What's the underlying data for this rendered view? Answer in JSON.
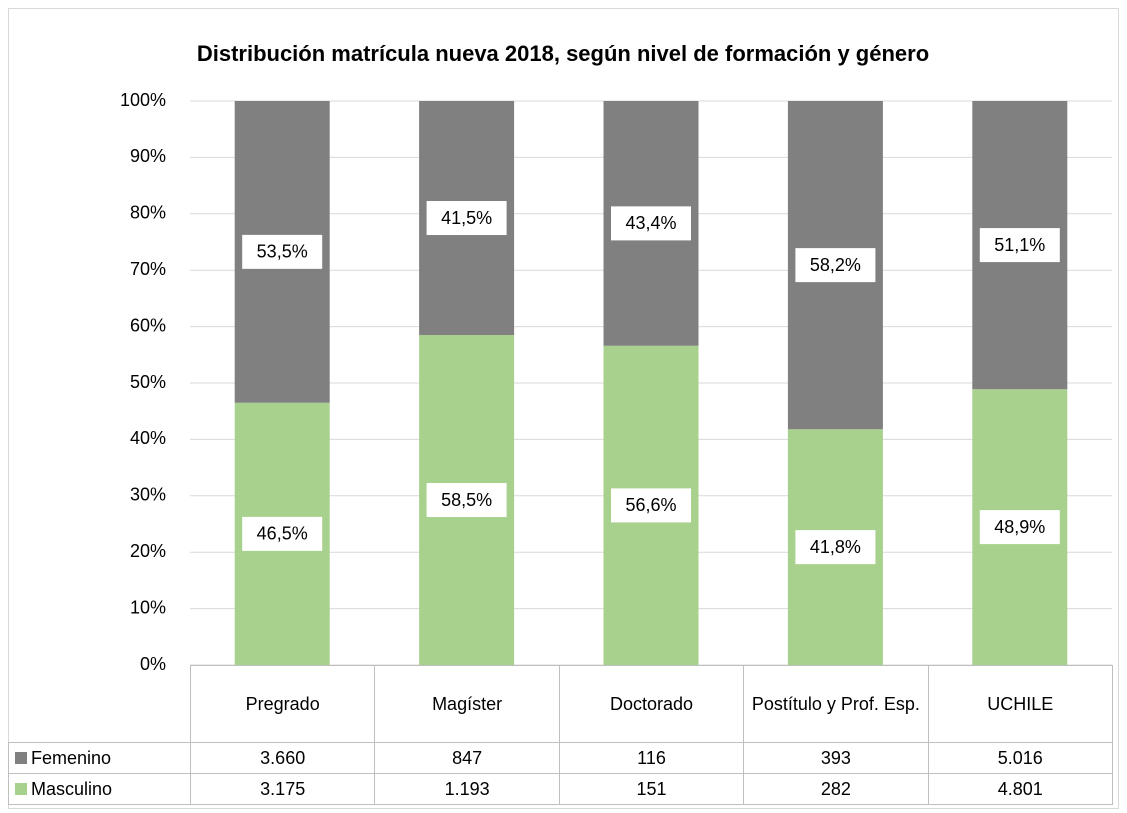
{
  "chart_data": {
    "type": "bar",
    "stacked": "percent",
    "title": "Distribución matrícula nueva 2018, según nivel de formación y género",
    "categories": [
      "Pregrado",
      "Magíster",
      "Doctorado",
      "Postítulo y Prof. Esp.",
      "UCHILE"
    ],
    "series": [
      {
        "name": "Masculino",
        "color": "#a9d18e",
        "values": [
          46.5,
          58.5,
          56.6,
          41.8,
          48.9
        ],
        "value_labels": [
          "46,5%",
          "58,5%",
          "56,6%",
          "41,8%",
          "48,9%"
        ],
        "table_values": [
          "3.175",
          "1.193",
          "151",
          "282",
          "4.801"
        ]
      },
      {
        "name": "Femenino",
        "color": "#808080",
        "values": [
          53.5,
          41.5,
          43.4,
          58.2,
          51.1
        ],
        "value_labels": [
          "53,5%",
          "41,5%",
          "43,4%",
          "58,2%",
          "51,1%"
        ],
        "table_values": [
          "3.660",
          "847",
          "116",
          "393",
          "5.016"
        ]
      }
    ],
    "ylim": [
      0,
      100
    ],
    "yticks": [
      {
        "value": 0,
        "label": "0%"
      },
      {
        "value": 10,
        "label": "10%"
      },
      {
        "value": 20,
        "label": "20%"
      },
      {
        "value": 30,
        "label": "30%"
      },
      {
        "value": 40,
        "label": "40%"
      },
      {
        "value": 50,
        "label": "50%"
      },
      {
        "value": 60,
        "label": "60%"
      },
      {
        "value": 70,
        "label": "70%"
      },
      {
        "value": 80,
        "label": "80%"
      },
      {
        "value": 90,
        "label": "90%"
      },
      {
        "value": 100,
        "label": "100%"
      }
    ],
    "grid": true
  }
}
